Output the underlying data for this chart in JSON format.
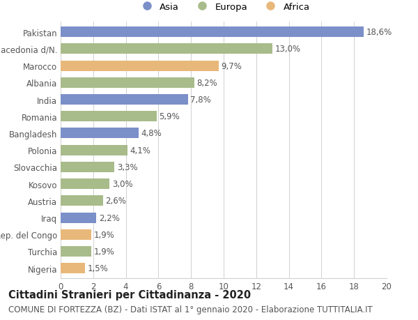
{
  "countries": [
    "Pakistan",
    "Macedonia d/N.",
    "Marocco",
    "Albania",
    "India",
    "Romania",
    "Bangladesh",
    "Polonia",
    "Slovacchia",
    "Kosovo",
    "Austria",
    "Iraq",
    "Rep. del Congo",
    "Turchia",
    "Nigeria"
  ],
  "values": [
    18.6,
    13.0,
    9.7,
    8.2,
    7.8,
    5.9,
    4.8,
    4.1,
    3.3,
    3.0,
    2.6,
    2.2,
    1.9,
    1.9,
    1.5
  ],
  "continents": [
    "Asia",
    "Europa",
    "Africa",
    "Europa",
    "Asia",
    "Europa",
    "Asia",
    "Europa",
    "Europa",
    "Europa",
    "Europa",
    "Asia",
    "Africa",
    "Europa",
    "Africa"
  ],
  "colors": {
    "Asia": "#7b8fc8",
    "Europa": "#a8bb8a",
    "Africa": "#e8b87a"
  },
  "xlim": [
    0,
    20
  ],
  "xticks": [
    0,
    2,
    4,
    6,
    8,
    10,
    12,
    14,
    16,
    18,
    20
  ],
  "title": "Cittadini Stranieri per Cittadinanza - 2020",
  "subtitle": "COMUNE DI FORTEZZA (BZ) - Dati ISTAT al 1° gennaio 2020 - Elaborazione TUTTITALIA.IT",
  "background_color": "#ffffff",
  "grid_color": "#d0d0d0",
  "bar_height": 0.62,
  "title_fontsize": 10.5,
  "subtitle_fontsize": 8.5,
  "label_fontsize": 8.5,
  "tick_fontsize": 8.5,
  "value_fontsize": 8.5
}
